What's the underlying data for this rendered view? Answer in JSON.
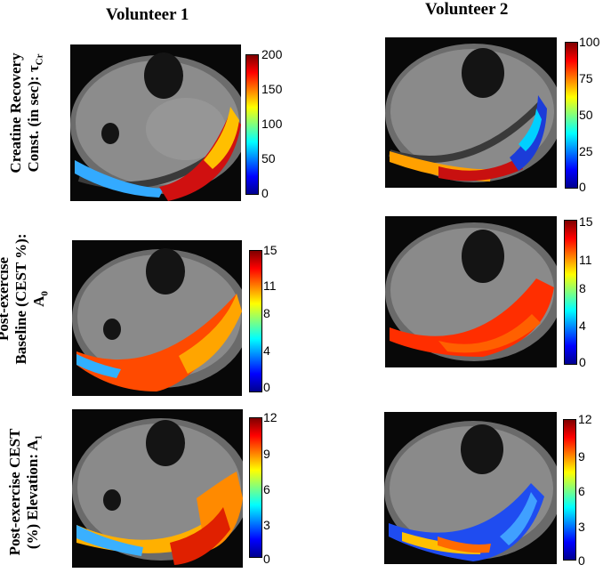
{
  "columns": [
    {
      "title": "Volunteer 1"
    },
    {
      "title": "Volunteer 2"
    }
  ],
  "rows": [
    {
      "label_lines": [
        "Creatine Recovery",
        "Const. (in sec): τ",
        "Cr"
      ]
    },
    {
      "label_lines": [
        "Post-exercise",
        "Baseline (CEST %):",
        "A",
        "0"
      ]
    },
    {
      "label_lines": [
        "Post-exercise CEST",
        "(%) Elevation: A",
        "1"
      ]
    }
  ],
  "panels": [
    {
      "volunteer": "Volunteer 1",
      "row": 1,
      "colorbar_ticks": [
        "200",
        "150",
        "100",
        "50",
        "0"
      ]
    },
    {
      "volunteer": "Volunteer 2",
      "row": 1,
      "colorbar_ticks": [
        "100",
        "75",
        "50",
        "25",
        "0"
      ]
    },
    {
      "volunteer": "Volunteer 1",
      "row": 2,
      "colorbar_ticks": [
        "15",
        "11",
        "8",
        "4",
        "0"
      ]
    },
    {
      "volunteer": "Volunteer 2",
      "row": 2,
      "colorbar_ticks": [
        "15",
        "11",
        "8",
        "4",
        "0"
      ]
    },
    {
      "volunteer": "Volunteer 1",
      "row": 3,
      "colorbar_ticks": [
        "12",
        "9",
        "6",
        "3",
        "0"
      ]
    },
    {
      "volunteer": "Volunteer 2",
      "row": 3,
      "colorbar_ticks": [
        "12",
        "9",
        "6",
        "3",
        "0"
      ]
    }
  ],
  "colors": {
    "jet": [
      "#00008f",
      "#0000ff",
      "#007fff",
      "#00ffff",
      "#7fff7f",
      "#ffff00",
      "#ff7f00",
      "#ff0000",
      "#7f0000"
    ]
  }
}
